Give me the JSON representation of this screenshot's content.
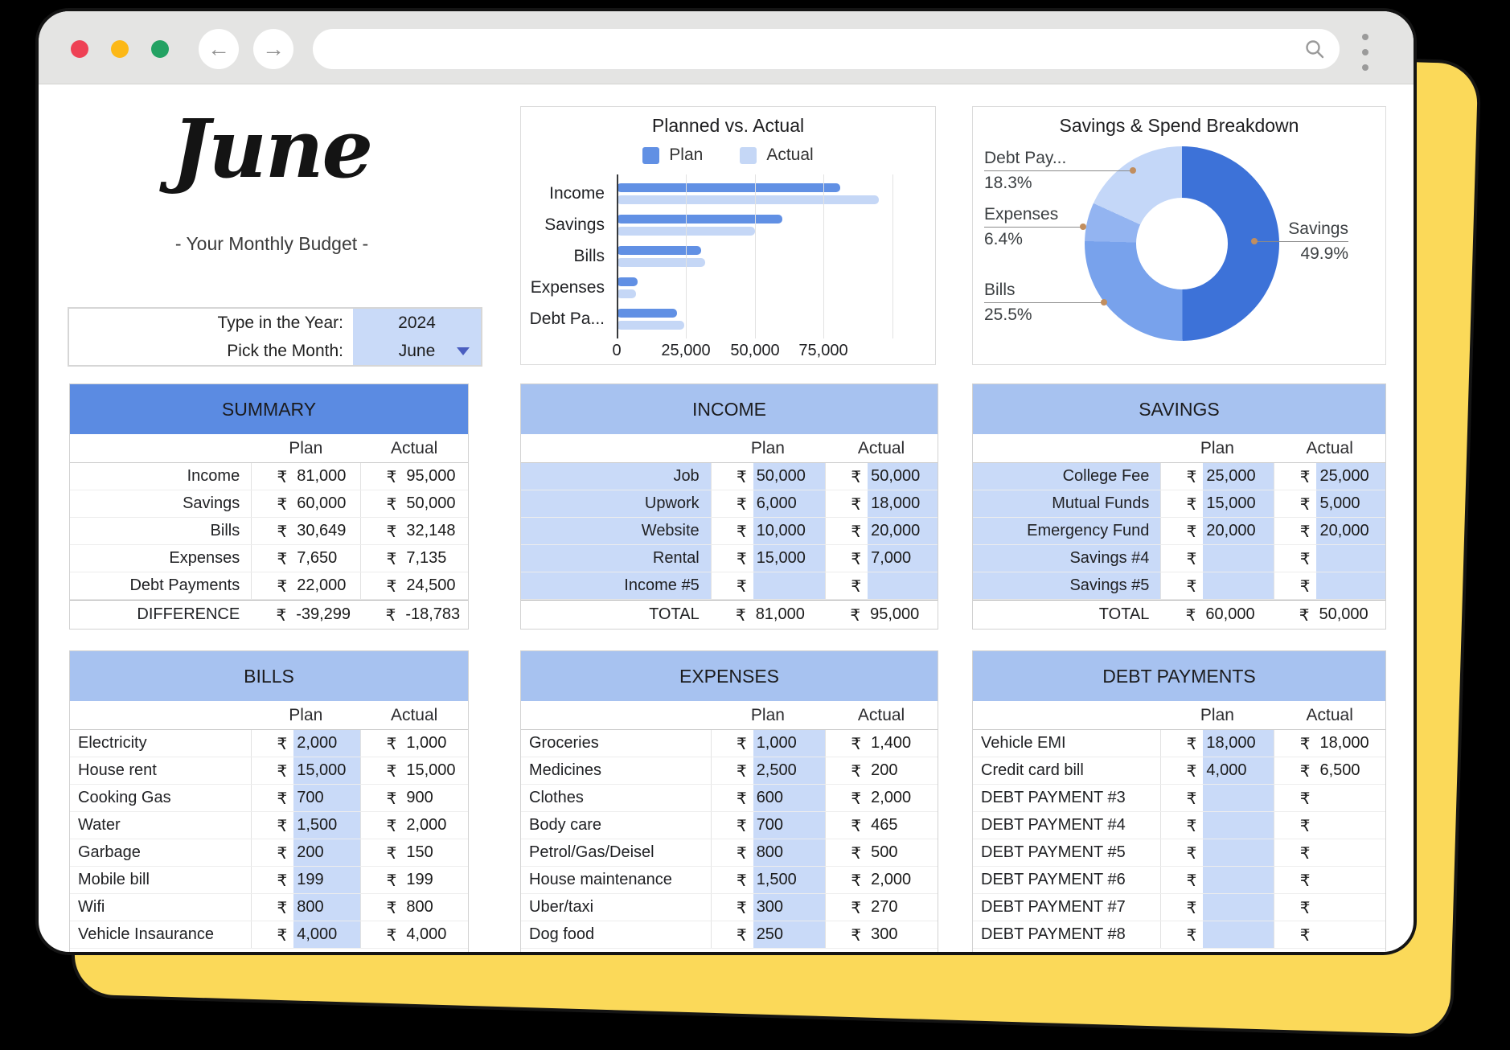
{
  "page": {
    "month_title": "June",
    "subtitle": "- Your Monthly Budget -"
  },
  "picker": {
    "year_label": "Type in the Year:",
    "year_value": "2024",
    "month_label": "Pick the Month:",
    "month_value": "June"
  },
  "currency": "₹",
  "chart_data": [
    {
      "type": "bar",
      "title": "Planned vs. Actual",
      "orientation": "horizontal",
      "categories": [
        "Income",
        "Savings",
        "Bills",
        "Expenses",
        "Debt Pa..."
      ],
      "series": [
        {
          "name": "Plan",
          "color": "#6190e4",
          "values": [
            81000,
            60000,
            30649,
            7650,
            22000
          ]
        },
        {
          "name": "Actual",
          "color": "#c5d7f6",
          "values": [
            95000,
            50000,
            32148,
            7135,
            24500
          ]
        }
      ],
      "xlim": [
        0,
        100000
      ],
      "xticks": [
        0,
        25000,
        50000,
        75000
      ],
      "xtick_labels": [
        "0",
        "25,000",
        "50,000",
        "75,000"
      ],
      "legend_position": "top",
      "grid": "vertical"
    },
    {
      "type": "pie",
      "donut": true,
      "title": "Savings & Spend Breakdown",
      "slices": [
        {
          "label": "Savings",
          "pct": "49.9%",
          "value": 49.9,
          "color": "#3d72d8"
        },
        {
          "label": "Bills",
          "pct": "25.5%",
          "value": 25.5,
          "color": "#78a2ec"
        },
        {
          "label": "Expenses",
          "pct": "6.4%",
          "value": 6.4,
          "color": "#93b4f1"
        },
        {
          "label": "Debt Pay...",
          "pct": "18.3%",
          "value": 18.3,
          "color": "#c4d7f8"
        }
      ]
    }
  ],
  "tables": {
    "summary": {
      "title": "SUMMARY",
      "col_plan": "Plan",
      "col_actual": "Actual",
      "rows": [
        {
          "label": "Income",
          "plan": "81,000",
          "actual": "95,000"
        },
        {
          "label": "Savings",
          "plan": "60,000",
          "actual": "50,000"
        },
        {
          "label": "Bills",
          "plan": "30,649",
          "actual": "32,148"
        },
        {
          "label": "Expenses",
          "plan": "7,650",
          "actual": "7,135"
        },
        {
          "label": "Debt Payments",
          "plan": "22,000",
          "actual": "24,500"
        }
      ],
      "total": {
        "label": "DIFFERENCE",
        "plan": "-39,299",
        "actual": "-18,783"
      }
    },
    "income": {
      "title": "INCOME",
      "col_plan": "Plan",
      "col_actual": "Actual",
      "rows": [
        {
          "label": "Job",
          "plan": "50,000",
          "actual": "50,000"
        },
        {
          "label": "Upwork",
          "plan": "6,000",
          "actual": "18,000"
        },
        {
          "label": "Website",
          "plan": "10,000",
          "actual": "20,000"
        },
        {
          "label": "Rental",
          "plan": "15,000",
          "actual": "7,000"
        },
        {
          "label": "Income #5",
          "plan": "",
          "actual": ""
        }
      ],
      "total": {
        "label": "TOTAL",
        "plan": "81,000",
        "actual": "95,000"
      }
    },
    "savings": {
      "title": "SAVINGS",
      "col_plan": "Plan",
      "col_actual": "Actual",
      "rows": [
        {
          "label": "College Fee",
          "plan": "25,000",
          "actual": "25,000"
        },
        {
          "label": "Mutual Funds",
          "plan": "15,000",
          "actual": "5,000"
        },
        {
          "label": "Emergency Fund",
          "plan": "20,000",
          "actual": "20,000"
        },
        {
          "label": "Savings #4",
          "plan": "",
          "actual": ""
        },
        {
          "label": "Savings #5",
          "plan": "",
          "actual": ""
        }
      ],
      "total": {
        "label": "TOTAL",
        "plan": "60,000",
        "actual": "50,000"
      }
    },
    "bills": {
      "title": "BILLS",
      "col_plan": "Plan",
      "col_actual": "Actual",
      "rows": [
        {
          "label": "Electricity",
          "plan": "2,000",
          "actual": "1,000"
        },
        {
          "label": "House rent",
          "plan": "15,000",
          "actual": "15,000"
        },
        {
          "label": "Cooking Gas",
          "plan": "700",
          "actual": "900"
        },
        {
          "label": "Water",
          "plan": "1,500",
          "actual": "2,000"
        },
        {
          "label": "Garbage",
          "plan": "200",
          "actual": "150"
        },
        {
          "label": "Mobile bill",
          "plan": "199",
          "actual": "199"
        },
        {
          "label": "Wifi",
          "plan": "800",
          "actual": "800"
        },
        {
          "label": "Vehicle Insaurance",
          "plan": "4,000",
          "actual": "4,000"
        }
      ]
    },
    "expenses": {
      "title": "EXPENSES",
      "col_plan": "Plan",
      "col_actual": "Actual",
      "rows": [
        {
          "label": "Groceries",
          "plan": "1,000",
          "actual": "1,400"
        },
        {
          "label": "Medicines",
          "plan": "2,500",
          "actual": "200"
        },
        {
          "label": "Clothes",
          "plan": "600",
          "actual": "2,000"
        },
        {
          "label": "Body care",
          "plan": "700",
          "actual": "465"
        },
        {
          "label": "Petrol/Gas/Deisel",
          "plan": "800",
          "actual": "500"
        },
        {
          "label": "House maintenance",
          "plan": "1,500",
          "actual": "2,000"
        },
        {
          "label": "Uber/taxi",
          "plan": "300",
          "actual": "270"
        },
        {
          "label": "Dog food",
          "plan": "250",
          "actual": "300"
        }
      ]
    },
    "debt": {
      "title": "DEBT PAYMENTS",
      "col_plan": "Plan",
      "col_actual": "Actual",
      "rows": [
        {
          "label": "Vehicle EMI",
          "plan": "18,000",
          "actual": "18,000"
        },
        {
          "label": "Credit card bill",
          "plan": "4,000",
          "actual": "6,500"
        },
        {
          "label": "DEBT PAYMENT #3",
          "plan": "",
          "actual": ""
        },
        {
          "label": "DEBT PAYMENT #4",
          "plan": "",
          "actual": ""
        },
        {
          "label": "DEBT PAYMENT #5",
          "plan": "",
          "actual": ""
        },
        {
          "label": "DEBT PAYMENT #6",
          "plan": "",
          "actual": ""
        },
        {
          "label": "DEBT PAYMENT #7",
          "plan": "",
          "actual": ""
        },
        {
          "label": "DEBT PAYMENT #8",
          "plan": "",
          "actual": ""
        }
      ]
    }
  },
  "icons": {
    "back": "left-arrow",
    "forward": "right-arrow",
    "search": "magnifier",
    "menu": "vertical-dots",
    "dropdown": "triangle-down"
  },
  "colors": {
    "summary_header": "#5b8be2",
    "section_header": "#a7c2f0",
    "cell_fill": "#c9daf8",
    "plan_bar": "#6190e4",
    "actual_bar": "#c5d7f6",
    "backdrop_yellow": "#fbd959",
    "traffic_lights": [
      "#ee4155",
      "#fcb817",
      "#23a263"
    ]
  }
}
